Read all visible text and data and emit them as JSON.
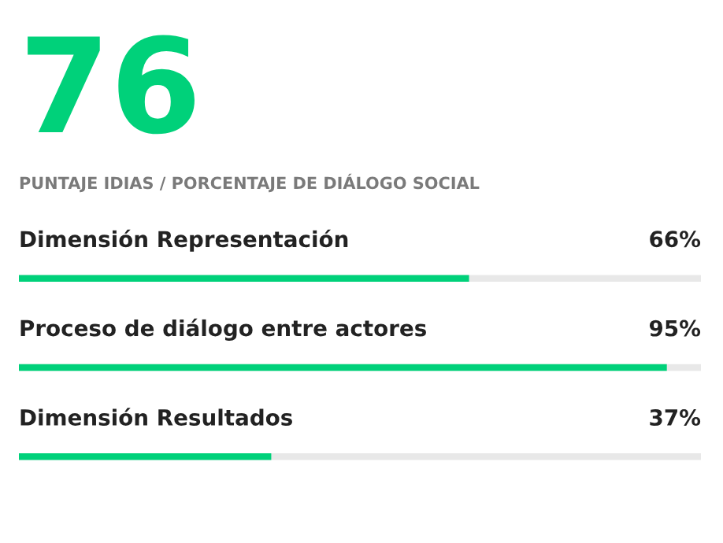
{
  "chart_data": {
    "type": "bar",
    "orientation": "horizontal",
    "title": "76",
    "subtitle": "PUNTAJE IDIAS / PORCENTAJE DE DIÁLOGO SOCIAL",
    "categories": [
      "Dimensión Representación",
      "Proceso de diálogo entre actores",
      "Dimensión Resultados"
    ],
    "values": [
      66,
      95,
      37
    ],
    "value_labels": [
      "66%",
      "95%",
      "37%"
    ],
    "color": "#00d17a",
    "xlim": [
      0,
      100
    ],
    "tick_labels": false
  }
}
